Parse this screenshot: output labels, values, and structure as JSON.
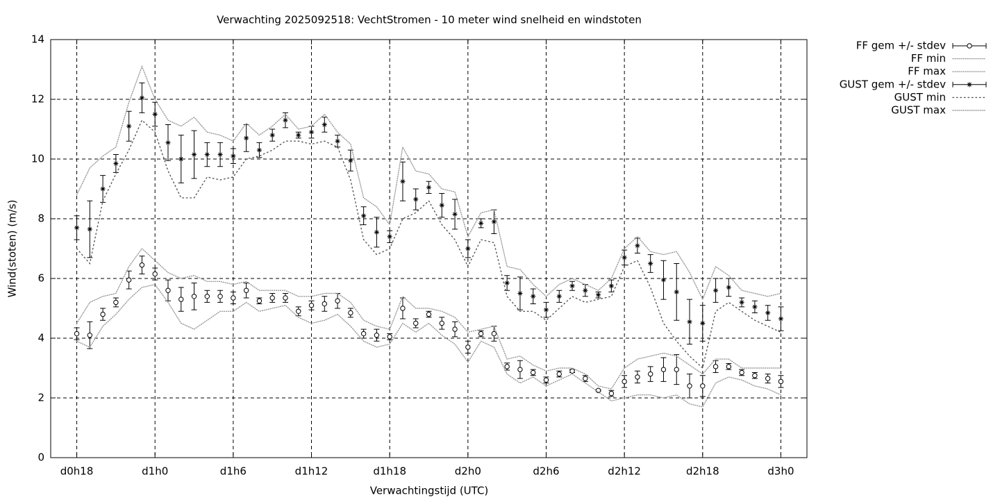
{
  "chart_data": {
    "type": "errorbar",
    "title": "Verwachting 2025092518: VechtStromen - 10 meter wind snelheid en windstoten",
    "xlabel": "Verwachtingstijd (UTC)",
    "ylabel": "Wind(stoten) (m/s)",
    "x": [
      18,
      19,
      20,
      21,
      22,
      23,
      24,
      25,
      26,
      27,
      28,
      29,
      30,
      31,
      32,
      33,
      34,
      35,
      36,
      37,
      38,
      39,
      40,
      41,
      42,
      43,
      44,
      45,
      46,
      47,
      48,
      49,
      50,
      51,
      52,
      53,
      54,
      55,
      56,
      57,
      58,
      59,
      60,
      61,
      62,
      63,
      64,
      65,
      66,
      67,
      68,
      69,
      70,
      71,
      72
    ],
    "xlim": [
      16,
      74
    ],
    "xticks": [
      {
        "value": 18,
        "label": "d0h18"
      },
      {
        "value": 24,
        "label": "d1h0"
      },
      {
        "value": 30,
        "label": "d1h6"
      },
      {
        "value": 36,
        "label": "d1h12"
      },
      {
        "value": 42,
        "label": "d1h18"
      },
      {
        "value": 48,
        "label": "d2h0"
      },
      {
        "value": 54,
        "label": "d2h6"
      },
      {
        "value": 60,
        "label": "d2h12"
      },
      {
        "value": 66,
        "label": "d2h18"
      },
      {
        "value": 72,
        "label": "d3h0"
      }
    ],
    "ylim": [
      0,
      14
    ],
    "yticks": [
      0,
      2,
      4,
      6,
      8,
      10,
      12,
      14
    ],
    "grid": true,
    "legend": "outside-top-right",
    "series": [
      {
        "name": "FF gem +/- stdev",
        "color": "#000000",
        "marker": "circle",
        "values": [
          4.15,
          4.1,
          4.8,
          5.2,
          5.95,
          6.45,
          6.15,
          5.6,
          5.3,
          5.4,
          5.4,
          5.4,
          5.35,
          5.6,
          5.25,
          5.35,
          5.35,
          4.9,
          5.1,
          5.15,
          5.25,
          4.85,
          4.15,
          4.1,
          4.05,
          5.0,
          4.5,
          4.8,
          4.5,
          4.3,
          3.7,
          4.15,
          4.15,
          3.05,
          2.95,
          2.85,
          2.6,
          2.8,
          2.9,
          2.65,
          2.25,
          2.15,
          2.55,
          2.7,
          2.8,
          2.95,
          2.95,
          2.4,
          2.4,
          3.05,
          3.05,
          2.85,
          2.75,
          2.65,
          2.55
        ],
        "errors": [
          0.2,
          0.45,
          0.2,
          0.15,
          0.3,
          0.3,
          0.2,
          0.35,
          0.4,
          0.45,
          0.2,
          0.2,
          0.2,
          0.25,
          0.1,
          0.15,
          0.15,
          0.15,
          0.15,
          0.25,
          0.25,
          0.15,
          0.15,
          0.2,
          0.1,
          0.35,
          0.15,
          0.1,
          0.2,
          0.25,
          0.2,
          0.1,
          0.25,
          0.12,
          0.3,
          0.1,
          0.1,
          0.1,
          0.05,
          0.1,
          0.02,
          0.1,
          0.2,
          0.2,
          0.25,
          0.4,
          0.5,
          0.4,
          0.35,
          0.2,
          0.1,
          0.1,
          0.1,
          0.15,
          0.2
        ]
      },
      {
        "name": "FF min",
        "color": "#999999",
        "dash": "1,2",
        "values": [
          3.9,
          3.7,
          4.4,
          4.8,
          5.3,
          5.7,
          5.8,
          5.2,
          4.5,
          4.3,
          4.6,
          4.9,
          4.9,
          5.2,
          4.9,
          5.0,
          5.1,
          4.7,
          4.5,
          4.6,
          4.8,
          4.4,
          3.9,
          3.7,
          3.8,
          4.5,
          4.2,
          4.5,
          4.1,
          3.8,
          3.2,
          3.9,
          3.7,
          2.8,
          2.5,
          2.7,
          2.4,
          2.6,
          2.8,
          2.5,
          2.2,
          1.9,
          2.0,
          2.1,
          2.1,
          2.0,
          2.1,
          1.8,
          1.7,
          2.5,
          2.7,
          2.6,
          2.4,
          2.3,
          2.1
        ]
      },
      {
        "name": "FF max",
        "color": "#999999",
        "dash": "1,2",
        "values": [
          4.5,
          5.2,
          5.4,
          5.5,
          6.4,
          7.0,
          6.6,
          6.2,
          6.0,
          6.1,
          5.9,
          5.9,
          5.8,
          5.9,
          5.6,
          5.6,
          5.6,
          5.4,
          5.4,
          5.5,
          5.5,
          5.2,
          4.6,
          4.4,
          4.3,
          5.4,
          5.0,
          5.0,
          4.9,
          4.7,
          4.2,
          4.3,
          4.4,
          3.3,
          3.4,
          3.1,
          2.9,
          3.0,
          3.0,
          2.8,
          2.4,
          2.3,
          3.0,
          3.3,
          3.4,
          3.5,
          3.4,
          3.1,
          2.8,
          3.3,
          3.3,
          3.0,
          3.0,
          3.0,
          3.0
        ]
      },
      {
        "name": "GUST gem +/- stdev",
        "color": "#000000",
        "marker": "star",
        "values": [
          7.7,
          7.65,
          9.0,
          9.85,
          11.1,
          12.05,
          11.5,
          10.55,
          10.0,
          10.15,
          10.15,
          10.15,
          10.1,
          10.7,
          10.3,
          10.8,
          11.3,
          10.8,
          10.9,
          11.15,
          10.6,
          9.95,
          8.1,
          7.55,
          7.4,
          9.25,
          8.65,
          9.05,
          8.45,
          8.15,
          7.0,
          7.85,
          7.9,
          5.85,
          5.5,
          5.4,
          4.95,
          5.4,
          5.75,
          5.6,
          5.45,
          5.75,
          6.7,
          7.1,
          6.5,
          5.95,
          5.55,
          4.55,
          4.5,
          5.6,
          5.7,
          5.2,
          5.05,
          4.85,
          4.65
        ],
        "errors": [
          0.4,
          0.95,
          0.45,
          0.3,
          0.5,
          0.5,
          0.4,
          0.6,
          0.8,
          0.8,
          0.4,
          0.4,
          0.25,
          0.45,
          0.25,
          0.2,
          0.25,
          0.1,
          0.2,
          0.25,
          0.2,
          0.35,
          0.3,
          0.5,
          0.2,
          0.65,
          0.35,
          0.2,
          0.4,
          0.5,
          0.3,
          0.15,
          0.4,
          0.25,
          0.55,
          0.25,
          0.25,
          0.2,
          0.15,
          0.2,
          0.1,
          0.2,
          0.25,
          0.25,
          0.3,
          0.65,
          0.95,
          0.75,
          0.6,
          0.4,
          0.3,
          0.15,
          0.2,
          0.25,
          0.4
        ]
      },
      {
        "name": "GUST min",
        "color": "#555555",
        "dash": "1.5,4",
        "values": [
          7.0,
          6.5,
          8.6,
          9.5,
          10.3,
          11.3,
          10.9,
          9.6,
          8.7,
          8.7,
          9.4,
          9.3,
          9.4,
          10.0,
          10.1,
          10.3,
          10.6,
          10.6,
          10.5,
          10.6,
          10.4,
          9.3,
          7.3,
          6.8,
          7.0,
          8.0,
          8.2,
          8.6,
          7.8,
          7.3,
          6.4,
          7.3,
          7.2,
          5.4,
          4.9,
          4.9,
          4.6,
          5.0,
          5.4,
          5.2,
          5.3,
          5.4,
          6.4,
          6.6,
          5.7,
          4.5,
          3.9,
          3.4,
          3.0,
          4.9,
          5.2,
          4.9,
          4.6,
          4.4,
          4.2
        ]
      },
      {
        "name": "GUST max",
        "color": "#999999",
        "dash": "1,2",
        "values": [
          8.8,
          9.7,
          10.1,
          10.4,
          11.9,
          13.1,
          12.0,
          11.3,
          11.1,
          11.4,
          10.9,
          10.8,
          10.6,
          11.2,
          10.8,
          11.1,
          11.5,
          11.0,
          11.1,
          11.5,
          10.9,
          10.5,
          8.7,
          8.4,
          7.8,
          10.4,
          9.6,
          9.5,
          9.0,
          8.9,
          7.4,
          8.2,
          8.3,
          6.4,
          6.3,
          5.8,
          5.4,
          5.8,
          6.0,
          5.8,
          5.6,
          6.0,
          7.0,
          7.4,
          6.9,
          6.8,
          6.9,
          6.2,
          5.3,
          6.4,
          6.1,
          5.6,
          5.5,
          5.4,
          5.5
        ]
      }
    ]
  }
}
